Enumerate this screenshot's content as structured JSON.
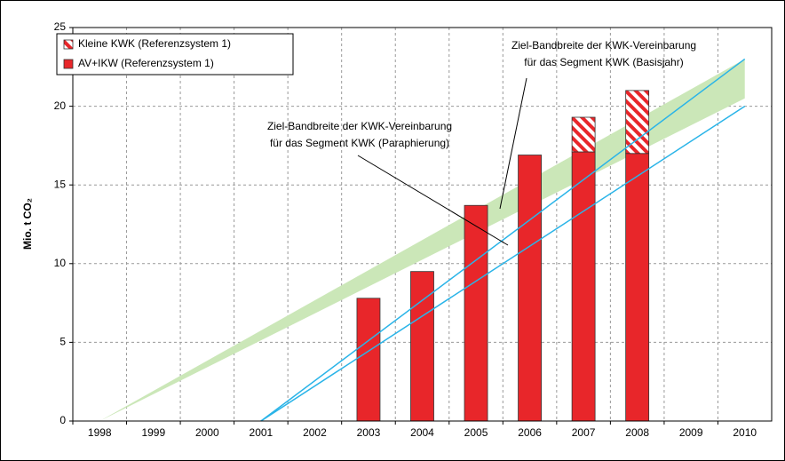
{
  "chart_data": {
    "type": "bar",
    "y_label": "Mio. t CO₂",
    "categories": [
      "1998",
      "1999",
      "2000",
      "2001",
      "2002",
      "2003",
      "2004",
      "2005",
      "2006",
      "2007",
      "2008",
      "2009",
      "2010"
    ],
    "series": [
      {
        "name": "AV+IKW (Referenzsystem 1)",
        "color": "#e8262a",
        "values": [
          null,
          null,
          null,
          null,
          null,
          7.8,
          9.5,
          13.7,
          16.9,
          17.1,
          17.0,
          null,
          null
        ]
      },
      {
        "name": "Kleine KWK (Referenzsystem 1)",
        "color": "#e8262a",
        "hatched": true,
        "values": [
          null,
          null,
          null,
          null,
          null,
          null,
          null,
          null,
          null,
          2.2,
          4.0,
          null,
          null
        ]
      }
    ],
    "band": {
      "color": "#cbe7b8",
      "x": [
        "1998",
        "2010"
      ],
      "upper": [
        0,
        23
      ],
      "lower": [
        0,
        20.5
      ]
    },
    "lines": [
      {
        "color": "#2ab4e8",
        "x": [
          "2001",
          "2010"
        ],
        "values": [
          0,
          23
        ]
      },
      {
        "color": "#2ab4e8",
        "x": [
          "2001",
          "2010"
        ],
        "values": [
          0,
          20
        ]
      }
    ],
    "annotations": [
      {
        "lines": [
          "Ziel-Bandbreite der KWK-Vereinbarung",
          "für das Segment KWK (Basisjahr)"
        ]
      },
      {
        "lines": [
          "Ziel-Bandbreite der KWK-Vereinbarung",
          "für das Segment KWK (Paraphierung)"
        ]
      }
    ],
    "ylim": [
      0,
      25
    ],
    "yticks": [
      0,
      5,
      10,
      15,
      20,
      25
    ],
    "grid": true,
    "legend": "top-left"
  }
}
